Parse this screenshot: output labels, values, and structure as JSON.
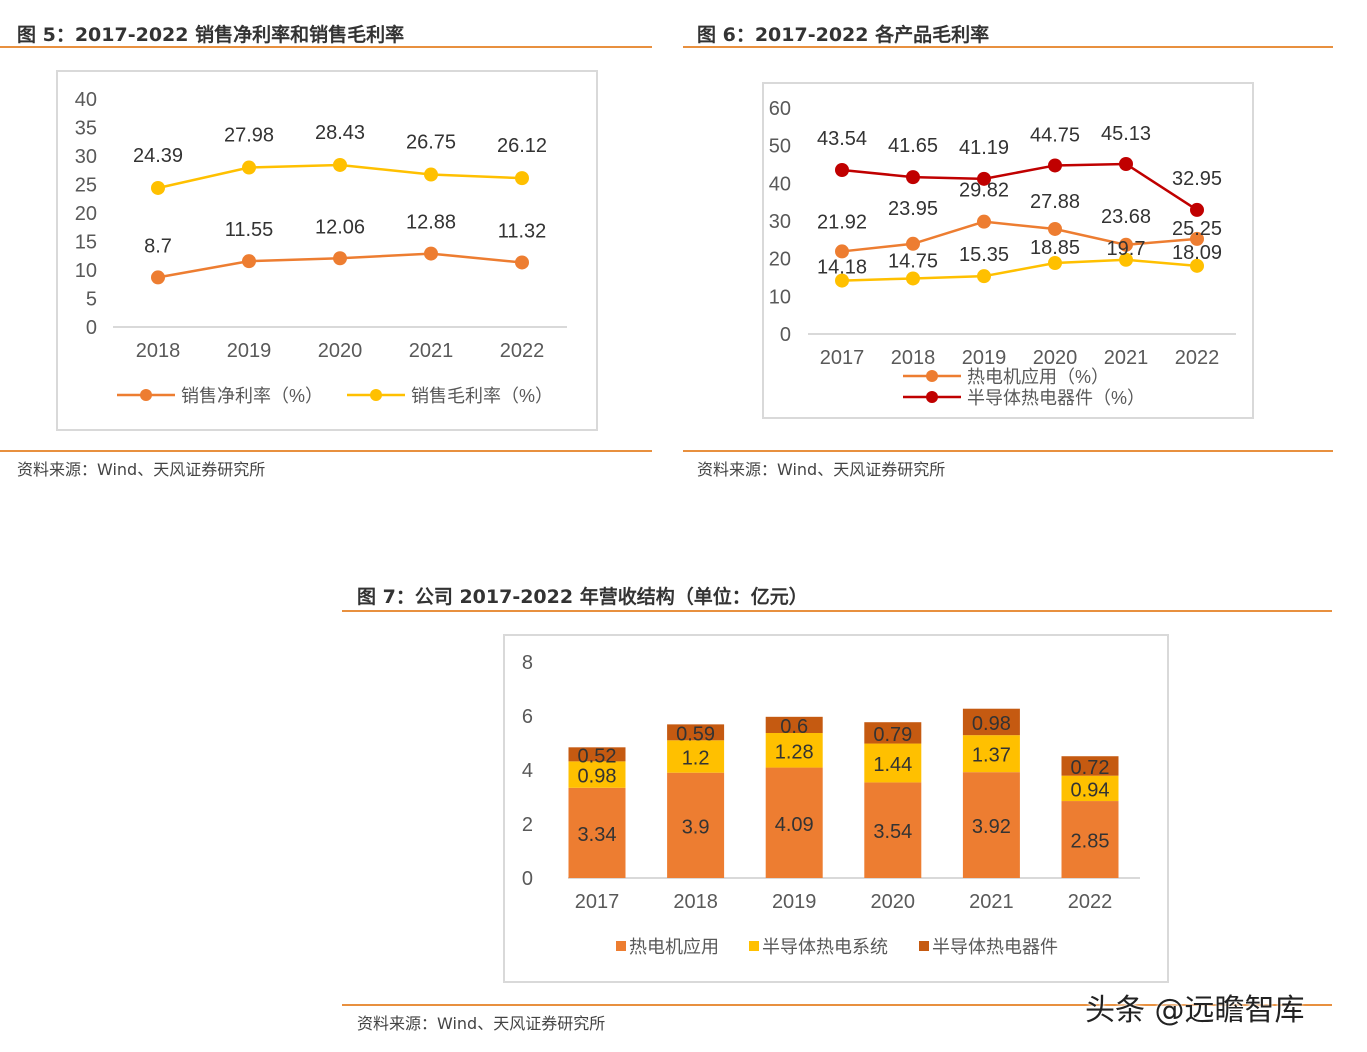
{
  "figures": [
    {
      "title": "图 5：2017-2022 销售净利率和销售毛利率",
      "source": "资料来源：Wind、天风证券研究所"
    },
    {
      "title": "图 6：2017-2022 各产品毛利率",
      "source": "资料来源：Wind、天风证券研究所"
    },
    {
      "title": "图 7：公司 2017-2022 年营收结构（单位：亿元）",
      "source": "资料来源：Wind、天风证券研究所"
    }
  ],
  "watermark": "头条 @远瞻智库",
  "chart_data": [
    {
      "type": "line",
      "categories": [
        "2018",
        "2019",
        "2020",
        "2021",
        "2022"
      ],
      "ylim": [
        0,
        40
      ],
      "yticks": [
        0,
        5,
        10,
        15,
        20,
        25,
        30,
        35,
        40
      ],
      "grid": false,
      "legend": "bottom",
      "series": [
        {
          "name": "销售净利率（%）",
          "color": "#ED7D31",
          "values": [
            8.7,
            11.55,
            12.06,
            12.88,
            11.32
          ]
        },
        {
          "name": "销售毛利率（%）",
          "color": "#FFC000",
          "values": [
            24.39,
            27.98,
            28.43,
            26.75,
            26.12
          ]
        }
      ]
    },
    {
      "type": "line",
      "categories": [
        "2017",
        "2018",
        "2019",
        "2020",
        "2021",
        "2022"
      ],
      "ylim": [
        0,
        60
      ],
      "yticks": [
        0,
        10,
        20,
        30,
        40,
        50,
        60
      ],
      "grid": false,
      "legend": "bottom",
      "series": [
        {
          "name": "热电机应用（%）",
          "color": "#ED7D31",
          "values": [
            21.92,
            23.95,
            29.82,
            27.88,
            23.68,
            25.25
          ]
        },
        {
          "name": "半导体热电器件（%）",
          "color": "#C00000",
          "values": [
            43.54,
            41.65,
            41.19,
            44.75,
            45.13,
            32.95
          ]
        },
        {
          "color": "#FFC000",
          "values": [
            14.18,
            14.75,
            15.35,
            18.85,
            19.7,
            18.09
          ]
        }
      ]
    },
    {
      "type": "bar",
      "stacked": true,
      "categories": [
        "2017",
        "2018",
        "2019",
        "2020",
        "2021",
        "2022"
      ],
      "ylim": [
        0,
        8
      ],
      "yticks": [
        0,
        2,
        4,
        6,
        8
      ],
      "grid": false,
      "legend": "bottom",
      "series": [
        {
          "name": "热电机应用",
          "color": "#ED7D31",
          "values": [
            3.34,
            3.9,
            4.09,
            3.54,
            3.92,
            2.85
          ]
        },
        {
          "name": "半导体热电系统",
          "color": "#FFC000",
          "values": [
            0.98,
            1.2,
            1.28,
            1.44,
            1.37,
            0.94
          ]
        },
        {
          "name": "半导体热电器件",
          "color": "#C55A11",
          "values": [
            0.52,
            0.59,
            0.6,
            0.79,
            0.98,
            0.72
          ]
        }
      ]
    }
  ]
}
